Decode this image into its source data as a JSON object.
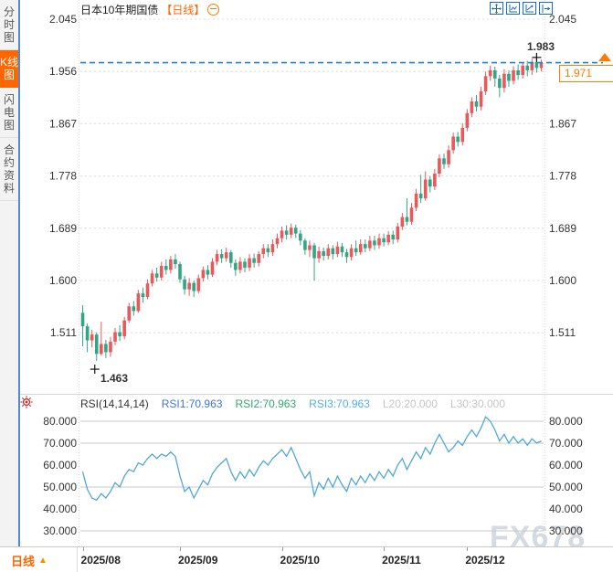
{
  "header": {
    "title": "日本10年期国债",
    "period_tag": "【日线】"
  },
  "sidebar": {
    "items": [
      {
        "label": "分时图",
        "active": false
      },
      {
        "label": "K线图",
        "active": true
      },
      {
        "label": "闪电图",
        "active": false
      },
      {
        "label": "合约资料",
        "active": false
      }
    ]
  },
  "toolbar": {
    "buttons": [
      "pan",
      "zoom-horizontal",
      "zoom-vertical",
      "jump-to-latest"
    ]
  },
  "price_pane": {
    "axis_labels": [
      "2.045",
      "1.956",
      "1.867",
      "1.778",
      "1.689",
      "1.600",
      "1.511"
    ],
    "last_price": "1.971",
    "high_label": "1.983",
    "low_label": "1.463"
  },
  "rsi_pane": {
    "title": "RSI(14,14,14)",
    "rsi1": "RSI1:70.963",
    "rsi2": "RSI2:70.963",
    "rsi3": "RSI3:70.963",
    "l20": "L20:20.000",
    "l30": "L30:30.000",
    "axis_labels": [
      "80.000",
      "70.000",
      "60.000",
      "50.000",
      "40.000",
      "30.000"
    ]
  },
  "bottom_bar": {
    "period_label": "日线",
    "dropdown_arrow": "▲",
    "months": [
      "2025/08",
      "2025/09",
      "2025/10",
      "2025/11",
      "2025/12"
    ]
  },
  "watermark": "FX678",
  "colors": {
    "up": "#e9585a",
    "down": "#31a683",
    "accent_orange": "#ff6600",
    "dashed_line": "#1e7fd6",
    "rsi_line": "#51a8d6",
    "rsi1": "#3f74d6",
    "rsi2": "#2fa86e",
    "rsi3": "#55aee0",
    "level_label": "#c5c5c5",
    "grid_dotted": "#dcdcdc",
    "grid_solid": "#c9c9c9",
    "watermark": "#cdd4dd"
  },
  "chart_data": [
    {
      "type": "candlestick",
      "title": "日本10年期国债 日线",
      "yticks": [
        2.045,
        1.956,
        1.867,
        1.778,
        1.689,
        1.6,
        1.511
      ],
      "ylim": [
        1.4,
        2.08
      ],
      "x_months": [
        "2025/08",
        "2025/09",
        "2025/10",
        "2025/11",
        "2025/12"
      ],
      "month_start_index": [
        0,
        21,
        43,
        65,
        83
      ],
      "last_price": 1.971,
      "high_marker": {
        "index": 98,
        "value": 1.983
      },
      "low_marker": {
        "index": 3,
        "value": 1.463
      },
      "ohlc": [
        [
          1.545,
          1.558,
          1.488,
          1.522
        ],
        [
          1.522,
          1.527,
          1.478,
          1.498
        ],
        [
          1.498,
          1.516,
          1.486,
          1.508
        ],
        [
          1.508,
          1.512,
          1.463,
          1.475
        ],
        [
          1.475,
          1.53,
          1.472,
          1.492
        ],
        [
          1.492,
          1.499,
          1.468,
          1.478
        ],
        [
          1.478,
          1.504,
          1.47,
          1.496
        ],
        [
          1.496,
          1.519,
          1.49,
          1.512
        ],
        [
          1.512,
          1.524,
          1.497,
          1.505
        ],
        [
          1.505,
          1.538,
          1.5,
          1.532
        ],
        [
          1.532,
          1.562,
          1.528,
          1.556
        ],
        [
          1.556,
          1.565,
          1.54,
          1.548
        ],
        [
          1.548,
          1.584,
          1.545,
          1.578
        ],
        [
          1.578,
          1.588,
          1.562,
          1.572
        ],
        [
          1.572,
          1.602,
          1.568,
          1.595
        ],
        [
          1.595,
          1.618,
          1.59,
          1.612
        ],
        [
          1.612,
          1.622,
          1.598,
          1.605
        ],
        [
          1.605,
          1.632,
          1.6,
          1.625
        ],
        [
          1.625,
          1.636,
          1.61,
          1.618
        ],
        [
          1.618,
          1.642,
          1.612,
          1.636
        ],
        [
          1.636,
          1.645,
          1.62,
          1.628
        ],
        [
          1.628,
          1.632,
          1.596,
          1.602
        ],
        [
          1.602,
          1.608,
          1.576,
          1.585
        ],
        [
          1.585,
          1.604,
          1.574,
          1.596
        ],
        [
          1.596,
          1.6,
          1.572,
          1.582
        ],
        [
          1.582,
          1.61,
          1.578,
          1.604
        ],
        [
          1.604,
          1.624,
          1.598,
          1.618
        ],
        [
          1.618,
          1.626,
          1.602,
          1.61
        ],
        [
          1.61,
          1.638,
          1.606,
          1.632
        ],
        [
          1.632,
          1.652,
          1.626,
          1.645
        ],
        [
          1.645,
          1.653,
          1.63,
          1.638
        ],
        [
          1.638,
          1.656,
          1.632,
          1.648
        ],
        [
          1.648,
          1.652,
          1.622,
          1.63
        ],
        [
          1.63,
          1.636,
          1.608,
          1.618
        ],
        [
          1.618,
          1.64,
          1.612,
          1.632
        ],
        [
          1.632,
          1.638,
          1.614,
          1.622
        ],
        [
          1.622,
          1.645,
          1.616,
          1.638
        ],
        [
          1.638,
          1.646,
          1.622,
          1.63
        ],
        [
          1.63,
          1.65,
          1.624,
          1.645
        ],
        [
          1.645,
          1.662,
          1.638,
          1.655
        ],
        [
          1.655,
          1.662,
          1.64,
          1.648
        ],
        [
          1.648,
          1.67,
          1.642,
          1.662
        ],
        [
          1.662,
          1.68,
          1.655,
          1.672
        ],
        [
          1.672,
          1.692,
          1.665,
          1.685
        ],
        [
          1.685,
          1.694,
          1.67,
          1.678
        ],
        [
          1.678,
          1.697,
          1.672,
          1.69
        ],
        [
          1.69,
          1.695,
          1.672,
          1.68
        ],
        [
          1.68,
          1.686,
          1.66,
          1.668
        ],
        [
          1.668,
          1.672,
          1.644,
          1.652
        ],
        [
          1.652,
          1.668,
          1.64,
          1.66
        ],
        [
          1.66,
          1.664,
          1.6,
          1.638
        ],
        [
          1.638,
          1.658,
          1.63,
          1.65
        ],
        [
          1.65,
          1.656,
          1.634,
          1.642
        ],
        [
          1.642,
          1.662,
          1.636,
          1.655
        ],
        [
          1.655,
          1.66,
          1.636,
          1.645
        ],
        [
          1.645,
          1.666,
          1.64,
          1.658
        ],
        [
          1.658,
          1.664,
          1.64,
          1.648
        ],
        [
          1.648,
          1.654,
          1.63,
          1.64
        ],
        [
          1.64,
          1.662,
          1.634,
          1.655
        ],
        [
          1.655,
          1.668,
          1.642,
          1.648
        ],
        [
          1.648,
          1.67,
          1.644,
          1.662
        ],
        [
          1.662,
          1.67,
          1.648,
          1.655
        ],
        [
          1.655,
          1.676,
          1.65,
          1.668
        ],
        [
          1.668,
          1.676,
          1.652,
          1.66
        ],
        [
          1.66,
          1.68,
          1.654,
          1.672
        ],
        [
          1.672,
          1.68,
          1.658,
          1.665
        ],
        [
          1.665,
          1.684,
          1.66,
          1.678
        ],
        [
          1.678,
          1.685,
          1.662,
          1.67
        ],
        [
          1.67,
          1.698,
          1.665,
          1.692
        ],
        [
          1.692,
          1.715,
          1.686,
          1.708
        ],
        [
          1.708,
          1.74,
          1.694,
          1.7
        ],
        [
          1.7,
          1.732,
          1.695,
          1.724
        ],
        [
          1.724,
          1.756,
          1.718,
          1.748
        ],
        [
          1.748,
          1.78,
          1.732,
          1.74
        ],
        [
          1.74,
          1.786,
          1.736,
          1.772
        ],
        [
          1.772,
          1.778,
          1.75,
          1.76
        ],
        [
          1.76,
          1.79,
          1.754,
          1.782
        ],
        [
          1.782,
          1.815,
          1.776,
          1.808
        ],
        [
          1.808,
          1.816,
          1.79,
          1.798
        ],
        [
          1.798,
          1.83,
          1.792,
          1.822
        ],
        [
          1.822,
          1.852,
          1.816,
          1.845
        ],
        [
          1.845,
          1.853,
          1.828,
          1.836
        ],
        [
          1.836,
          1.868,
          1.83,
          1.86
        ],
        [
          1.86,
          1.892,
          1.854,
          1.885
        ],
        [
          1.885,
          1.912,
          1.878,
          1.905
        ],
        [
          1.905,
          1.916,
          1.888,
          1.896
        ],
        [
          1.896,
          1.93,
          1.89,
          1.922
        ],
        [
          1.922,
          1.956,
          1.916,
          1.948
        ],
        [
          1.948,
          1.966,
          1.94,
          1.958
        ],
        [
          1.958,
          1.964,
          1.93,
          1.944
        ],
        [
          1.944,
          1.95,
          1.912,
          1.928
        ],
        [
          1.928,
          1.96,
          1.92,
          1.952
        ],
        [
          1.952,
          1.958,
          1.93,
          1.94
        ],
        [
          1.94,
          1.965,
          1.934,
          1.958
        ],
        [
          1.958,
          1.968,
          1.942,
          1.95
        ],
        [
          1.95,
          1.972,
          1.944,
          1.966
        ],
        [
          1.966,
          1.974,
          1.948,
          1.958
        ],
        [
          1.958,
          1.978,
          1.95,
          1.972
        ],
        [
          1.972,
          1.983,
          1.954,
          1.962
        ],
        [
          1.962,
          1.976,
          1.956,
          1.971
        ]
      ]
    },
    {
      "type": "line",
      "name": "RSI(14,14,14)",
      "legend": [
        "RSI1:70.963",
        "RSI2:70.963",
        "RSI3:70.963"
      ],
      "current": 70.963,
      "yticks": [
        80,
        70,
        60,
        50,
        40,
        30
      ],
      "grid_levels": [
        80,
        70,
        50,
        30
      ],
      "reference_levels": {
        "L20": 20.0,
        "L30": 30.0
      },
      "values": [
        57,
        49,
        45,
        44,
        47,
        45,
        48,
        52,
        50,
        55,
        58,
        57,
        61,
        60,
        63,
        65,
        63,
        65,
        64,
        66,
        64,
        55,
        48,
        50,
        45,
        49,
        53,
        51,
        56,
        59,
        61,
        63,
        57,
        53,
        57,
        54,
        58,
        55,
        59,
        62,
        60,
        63,
        65,
        67,
        64,
        68,
        63,
        58,
        54,
        57,
        46,
        52,
        49,
        54,
        50,
        55,
        51,
        48,
        54,
        51,
        55,
        52,
        56,
        53,
        57,
        54,
        58,
        55,
        60,
        63,
        58,
        62,
        66,
        63,
        68,
        65,
        70,
        74,
        70,
        66,
        68,
        71,
        69,
        73,
        76,
        73,
        77,
        82,
        80,
        76,
        71,
        74,
        70,
        73,
        70,
        72,
        69,
        72,
        70,
        71
      ]
    }
  ]
}
